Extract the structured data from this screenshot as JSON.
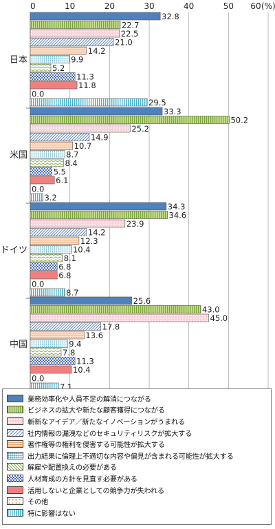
{
  "chart_data": {
    "type": "bar",
    "orientation": "horizontal",
    "title": "",
    "xlabel": "",
    "ylabel": "",
    "x_unit": "(%)",
    "xlim": [
      0,
      60
    ],
    "x_ticks": [
      0,
      10,
      20,
      30,
      40,
      50,
      60
    ],
    "grid": true,
    "legend_position": "bottom",
    "categories": [
      "日本",
      "米国",
      "ドイツ",
      "中国"
    ],
    "series": [
      {
        "name": "業務効率化や人員不足の解消につながる",
        "values": [
          32.8,
          33.3,
          34.3,
          25.6
        ],
        "color": "#4f81bd",
        "pattern": "solid"
      },
      {
        "name": "ビジネスの拡大や新たな顧客獲得につながる",
        "values": [
          22.7,
          50.2,
          34.6,
          43.0
        ],
        "color": "#9bbb59",
        "pattern": "vstripe"
      },
      {
        "name": "斬新なアイデア／新たなイノベーションがうまれる",
        "values": [
          22.5,
          25.2,
          23.9,
          45.0
        ],
        "color": "#f7a6b2",
        "pattern": "dots"
      },
      {
        "name": "社内情報の漏洩などのセキュリティリスクが拡大する",
        "values": [
          21.0,
          14.9,
          14.2,
          17.8
        ],
        "color": "#8ea9db",
        "pattern": "diag"
      },
      {
        "name": "著作権等の権利を侵害する可能性が拡大する",
        "values": [
          14.2,
          10.7,
          12.3,
          13.6
        ],
        "color": "#f4b183",
        "pattern": "hstripe"
      },
      {
        "name": "出力結果に倫理上不適切な内容や偏見が含まれる可能性が拡大する",
        "values": [
          9.9,
          8.7,
          10.4,
          9.4
        ],
        "color": "#4bacc6",
        "pattern": "grid-dots"
      },
      {
        "name": "解雇や配置換えの必要がある",
        "values": [
          5.2,
          8.4,
          8.1,
          7.8
        ],
        "color": "#9bbb59",
        "pattern": "zigzag"
      },
      {
        "name": "人材育成の方針を見直す必要がある",
        "values": [
          11.3,
          5.5,
          6.8,
          11.3
        ],
        "color": "#5b7fd1",
        "pattern": "checker"
      },
      {
        "name": "活用しないと企業としての競争力が失われる",
        "values": [
          11.8,
          6.1,
          6.8,
          10.4
        ],
        "color": "#f08080",
        "pattern": "solid"
      },
      {
        "name": "その他",
        "values": [
          0.0,
          0.0,
          0.0,
          0.0
        ],
        "color": "#f4a460",
        "pattern": "sparse-dots"
      },
      {
        "name": "特に影響はない",
        "values": [
          29.5,
          3.2,
          8.7,
          7.1
        ],
        "color": "#92cddc",
        "pattern": "vstripe-blue"
      }
    ]
  }
}
